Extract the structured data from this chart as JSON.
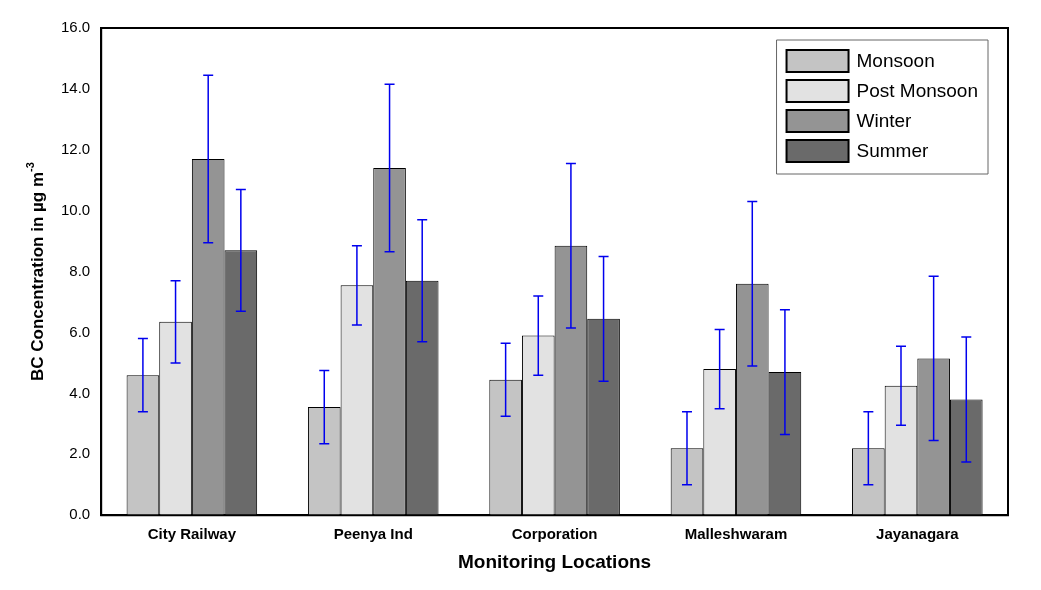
{
  "chart_data": {
    "type": "bar",
    "xlabel": "Monitoring Locations",
    "ylabel": "BC Concentration in µg m$^{-3}$",
    "categories": [
      "City Railway",
      "Peenya Ind",
      "Corporation",
      "Malleshwaram",
      "Jayanagara"
    ],
    "series": [
      {
        "name": "Monsoon",
        "color": "#c4c4c4",
        "values": [
          4.6,
          3.55,
          4.45,
          2.2,
          2.2
        ],
        "errors": [
          1.2,
          1.2,
          1.2,
          1.2,
          1.2
        ]
      },
      {
        "name": "Post Monsoon",
        "color": "#e2e2e2",
        "values": [
          6.35,
          7.55,
          5.9,
          4.8,
          4.25
        ],
        "errors": [
          1.35,
          1.3,
          1.3,
          1.3,
          1.3
        ]
      },
      {
        "name": "Winter",
        "color": "#949494",
        "values": [
          11.7,
          11.4,
          8.85,
          7.6,
          5.15
        ],
        "errors": [
          2.75,
          2.75,
          2.7,
          2.7,
          2.7
        ]
      },
      {
        "name": "Summer",
        "color": "#6a6a6a",
        "values": [
          8.7,
          7.7,
          6.45,
          4.7,
          3.8
        ],
        "errors": [
          2.0,
          2.0,
          2.05,
          2.05,
          2.05
        ]
      }
    ],
    "ylim": [
      0,
      16
    ],
    "yticks": [
      {
        "value": 0,
        "label": "0.0"
      },
      {
        "value": 2,
        "label": "2.0"
      },
      {
        "value": 4,
        "label": "4.0"
      },
      {
        "value": 6,
        "label": "6.0"
      },
      {
        "value": 8,
        "label": "8.0"
      },
      {
        "value": 10,
        "label": "10.0"
      },
      {
        "value": 12,
        "label": "12.0"
      },
      {
        "value": 14,
        "label": "14.0"
      },
      {
        "value": 16,
        "label": "16.0"
      }
    ],
    "grid": false,
    "legend": "top right"
  }
}
